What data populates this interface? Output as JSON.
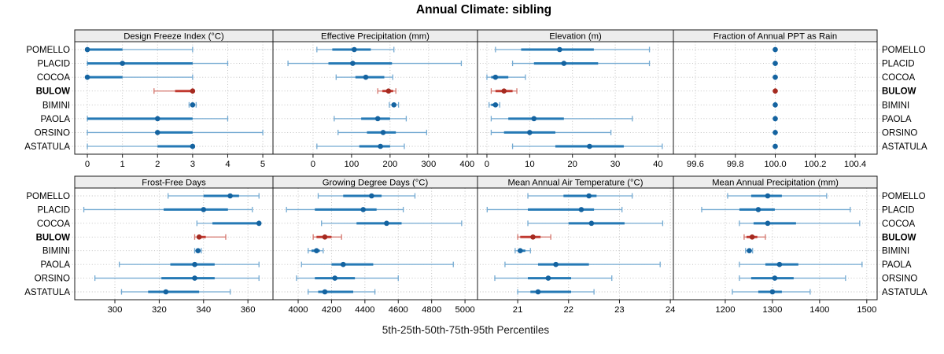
{
  "title": "Annual Climate: sibling",
  "caption": "5th-25th-50th-75th-95th Percentiles",
  "percentile_labels": [
    "5th",
    "25th",
    "50th",
    "75th",
    "95th"
  ],
  "sites": [
    "POMELLO",
    "PLACID",
    "COCOA",
    "BULOW",
    "BIMINI",
    "PAOLA",
    "ORSINO",
    "ASTATULA"
  ],
  "highlight_site": "BULOW",
  "colors": {
    "normal": {
      "range": "#74aad2",
      "box": "#2579b5",
      "median": "#1463a0"
    },
    "highlight": {
      "range": "#d4756c",
      "box": "#c13a31",
      "median": "#a52a20"
    },
    "header_bg": "#ededed",
    "grid": "#bcbcbc",
    "border": "#1a1a1a",
    "text": "#000000"
  },
  "chart_data": [
    {
      "type": "dotplot-percentiles",
      "title": "Design Freeze Index (°C)",
      "xlim": [
        -0.36,
        5.29
      ],
      "tick_values": [
        0,
        1,
        2,
        3,
        4,
        5
      ],
      "tick_labels": [
        "0",
        "1",
        "2",
        "3",
        "4",
        "5"
      ],
      "series": [
        {
          "site": "POMELLO",
          "values": [
            0,
            0,
            0,
            1,
            3
          ]
        },
        {
          "site": "PLACID",
          "values": [
            0,
            0,
            1,
            3,
            4
          ]
        },
        {
          "site": "COCOA",
          "values": [
            0,
            0,
            0,
            1,
            3
          ]
        },
        {
          "site": "BULOW",
          "values": [
            1.9,
            2.5,
            3,
            3,
            3
          ]
        },
        {
          "site": "BIMINI",
          "values": [
            2.9,
            2.95,
            3,
            3.05,
            3.1
          ]
        },
        {
          "site": "PAOLA",
          "values": [
            0,
            0,
            2,
            3,
            4
          ]
        },
        {
          "site": "ORSINO",
          "values": [
            0,
            2,
            2,
            3,
            5
          ]
        },
        {
          "site": "ASTATULA",
          "values": [
            0,
            2,
            3,
            3,
            3
          ]
        }
      ]
    },
    {
      "type": "dotplot-percentiles",
      "title": "Effective Precipitation (mm)",
      "xlim": [
        -104,
        427
      ],
      "tick_values": [
        0,
        100,
        200,
        300,
        400
      ],
      "tick_labels": [
        "0",
        "100",
        "200",
        "300",
        "400"
      ],
      "series": [
        {
          "site": "POMELLO",
          "values": [
            10,
            50,
            107,
            150,
            210
          ]
        },
        {
          "site": "PLACID",
          "values": [
            -65,
            40,
            103,
            205,
            385
          ]
        },
        {
          "site": "COCOA",
          "values": [
            60,
            110,
            137,
            185,
            207
          ]
        },
        {
          "site": "BULOW",
          "values": [
            168,
            180,
            196,
            208,
            215
          ]
        },
        {
          "site": "BIMINI",
          "values": [
            198,
            205,
            210,
            215,
            222
          ]
        },
        {
          "site": "PAOLA",
          "values": [
            55,
            125,
            168,
            200,
            242
          ]
        },
        {
          "site": "ORSINO",
          "values": [
            65,
            140,
            182,
            215,
            295
          ]
        },
        {
          "site": "ASTATULA",
          "values": [
            10,
            120,
            175,
            200,
            237
          ]
        }
      ]
    },
    {
      "type": "dotplot-percentiles",
      "title": "Elevation (m)",
      "xlim": [
        -2.2,
        43.6
      ],
      "tick_values": [
        0,
        10,
        20,
        30,
        40
      ],
      "tick_labels": [
        "0",
        "10",
        "20",
        "30",
        "40"
      ],
      "series": [
        {
          "site": "POMELLO",
          "values": [
            2,
            8,
            17,
            25,
            38
          ]
        },
        {
          "site": "PLACID",
          "values": [
            6,
            11,
            18,
            26,
            38
          ]
        },
        {
          "site": "COCOA",
          "values": [
            0,
            1,
            2,
            5,
            9
          ]
        },
        {
          "site": "BULOW",
          "values": [
            1,
            2,
            4,
            6,
            7
          ]
        },
        {
          "site": "BIMINI",
          "values": [
            0.5,
            1,
            2,
            2.5,
            3
          ]
        },
        {
          "site": "PAOLA",
          "values": [
            1,
            5,
            11,
            18,
            34
          ]
        },
        {
          "site": "ORSINO",
          "values": [
            1,
            4,
            10,
            16,
            29
          ]
        },
        {
          "site": "ASTATULA",
          "values": [
            6,
            16,
            24,
            32,
            41
          ]
        }
      ]
    },
    {
      "type": "dotplot-percentiles",
      "title": "Fraction of Annual PPT as Rain",
      "xlim": [
        99.49,
        100.51
      ],
      "tick_values": [
        99.6,
        99.8,
        100.0,
        100.2,
        100.4
      ],
      "tick_labels": [
        "99.6",
        "99.8",
        "100.0",
        "100.2",
        "100.4"
      ],
      "series": [
        {
          "site": "POMELLO",
          "values": [
            100,
            100,
            100,
            100,
            100
          ]
        },
        {
          "site": "PLACID",
          "values": [
            100,
            100,
            100,
            100,
            100
          ]
        },
        {
          "site": "COCOA",
          "values": [
            100,
            100,
            100,
            100,
            100
          ]
        },
        {
          "site": "BULOW",
          "values": [
            100,
            100,
            100,
            100,
            100
          ]
        },
        {
          "site": "BIMINI",
          "values": [
            100,
            100,
            100,
            100,
            100
          ]
        },
        {
          "site": "PAOLA",
          "values": [
            100,
            100,
            100,
            100,
            100
          ]
        },
        {
          "site": "ORSINO",
          "values": [
            100,
            100,
            100,
            100,
            100
          ]
        },
        {
          "site": "ASTATULA",
          "values": [
            100,
            100,
            100,
            100,
            100
          ]
        }
      ]
    },
    {
      "type": "dotplot-percentiles",
      "title": "Frost-Free Days",
      "xlim": [
        281.9,
        371.3
      ],
      "tick_values": [
        300,
        320,
        340,
        360
      ],
      "tick_labels": [
        "300",
        "320",
        "340",
        "360"
      ],
      "series": [
        {
          "site": "POMELLO",
          "values": [
            324,
            340,
            352,
            356,
            365
          ]
        },
        {
          "site": "PLACID",
          "values": [
            286,
            322,
            340,
            351,
            362
          ]
        },
        {
          "site": "COCOA",
          "values": [
            337,
            344,
            365,
            365,
            365
          ]
        },
        {
          "site": "BULOW",
          "values": [
            336,
            337,
            338,
            341,
            350
          ]
        },
        {
          "site": "BIMINI",
          "values": [
            336,
            337,
            337.5,
            338,
            339
          ]
        },
        {
          "site": "PAOLA",
          "values": [
            302,
            325,
            336,
            345,
            365
          ]
        },
        {
          "site": "ORSINO",
          "values": [
            291,
            321,
            336,
            345,
            365
          ]
        },
        {
          "site": "ASTATULA",
          "values": [
            303,
            315,
            323,
            338,
            352
          ]
        }
      ]
    },
    {
      "type": "dotplot-percentiles",
      "title": "Growing Degree Days (°C)",
      "xlim": [
        3849,
        5075
      ],
      "tick_values": [
        4000,
        4200,
        4400,
        4600,
        4800,
        5000
      ],
      "tick_labels": [
        "4000",
        "4200",
        "4400",
        "4600",
        "4800",
        "5000"
      ],
      "series": [
        {
          "site": "POMELLO",
          "values": [
            4120,
            4270,
            4440,
            4500,
            4700
          ]
        },
        {
          "site": "PLACID",
          "values": [
            3930,
            4100,
            4390,
            4470,
            4630
          ]
        },
        {
          "site": "COCOA",
          "values": [
            4140,
            4350,
            4530,
            4620,
            4980
          ]
        },
        {
          "site": "BULOW",
          "values": [
            4090,
            4110,
            4160,
            4200,
            4260
          ]
        },
        {
          "site": "BIMINI",
          "values": [
            4060,
            4080,
            4110,
            4130,
            4150
          ]
        },
        {
          "site": "PAOLA",
          "values": [
            4020,
            4200,
            4270,
            4450,
            4930
          ]
        },
        {
          "site": "ORSINO",
          "values": [
            3990,
            4100,
            4220,
            4340,
            4600
          ]
        },
        {
          "site": "ASTATULA",
          "values": [
            4060,
            4120,
            4160,
            4330,
            4460
          ]
        }
      ]
    },
    {
      "type": "dotplot-percentiles",
      "title": "Mean Annual Air Temperature (°C)",
      "xlim": [
        20.21,
        24.06
      ],
      "tick_values": [
        21,
        22,
        23,
        24
      ],
      "tick_labels": [
        "21",
        "22",
        "23",
        "24"
      ],
      "series": [
        {
          "site": "POMELLO",
          "values": [
            21.2,
            21.9,
            22.4,
            22.55,
            23.25
          ]
        },
        {
          "site": "PLACID",
          "values": [
            20.4,
            21.2,
            22.25,
            22.5,
            23.05
          ]
        },
        {
          "site": "COCOA",
          "values": [
            21.2,
            22.0,
            22.45,
            23.1,
            23.85
          ]
        },
        {
          "site": "BULOW",
          "values": [
            21.0,
            21.05,
            21.3,
            21.45,
            21.65
          ]
        },
        {
          "site": "BIMINI",
          "values": [
            20.95,
            21.0,
            21.05,
            21.15,
            21.25
          ]
        },
        {
          "site": "PAOLA",
          "values": [
            20.75,
            21.4,
            21.75,
            22.4,
            23.8
          ]
        },
        {
          "site": "ORSINO",
          "values": [
            20.55,
            21.2,
            21.6,
            22.05,
            22.85
          ]
        },
        {
          "site": "ASTATULA",
          "values": [
            21.0,
            21.25,
            21.4,
            22.05,
            22.5
          ]
        }
      ]
    },
    {
      "type": "dotplot-percentiles",
      "title": "Mean Annual Precipitation (mm)",
      "xlim": [
        1090,
        1522
      ],
      "tick_values": [
        1200,
        1300,
        1400,
        1500
      ],
      "tick_labels": [
        "1200",
        "1300",
        "1400",
        "1500"
      ],
      "series": [
        {
          "site": "POMELLO",
          "values": [
            1205,
            1255,
            1290,
            1320,
            1415
          ]
        },
        {
          "site": "PLACID",
          "values": [
            1150,
            1230,
            1270,
            1305,
            1465
          ]
        },
        {
          "site": "COCOA",
          "values": [
            1230,
            1260,
            1290,
            1350,
            1485
          ]
        },
        {
          "site": "BULOW",
          "values": [
            1240,
            1245,
            1257,
            1268,
            1285
          ]
        },
        {
          "site": "BIMINI",
          "values": [
            1243,
            1248,
            1251,
            1255,
            1258
          ]
        },
        {
          "site": "PAOLA",
          "values": [
            1230,
            1285,
            1315,
            1355,
            1490
          ]
        },
        {
          "site": "ORSINO",
          "values": [
            1230,
            1255,
            1305,
            1345,
            1455
          ]
        },
        {
          "site": "ASTATULA",
          "values": [
            1215,
            1270,
            1300,
            1320,
            1380
          ]
        }
      ]
    }
  ]
}
